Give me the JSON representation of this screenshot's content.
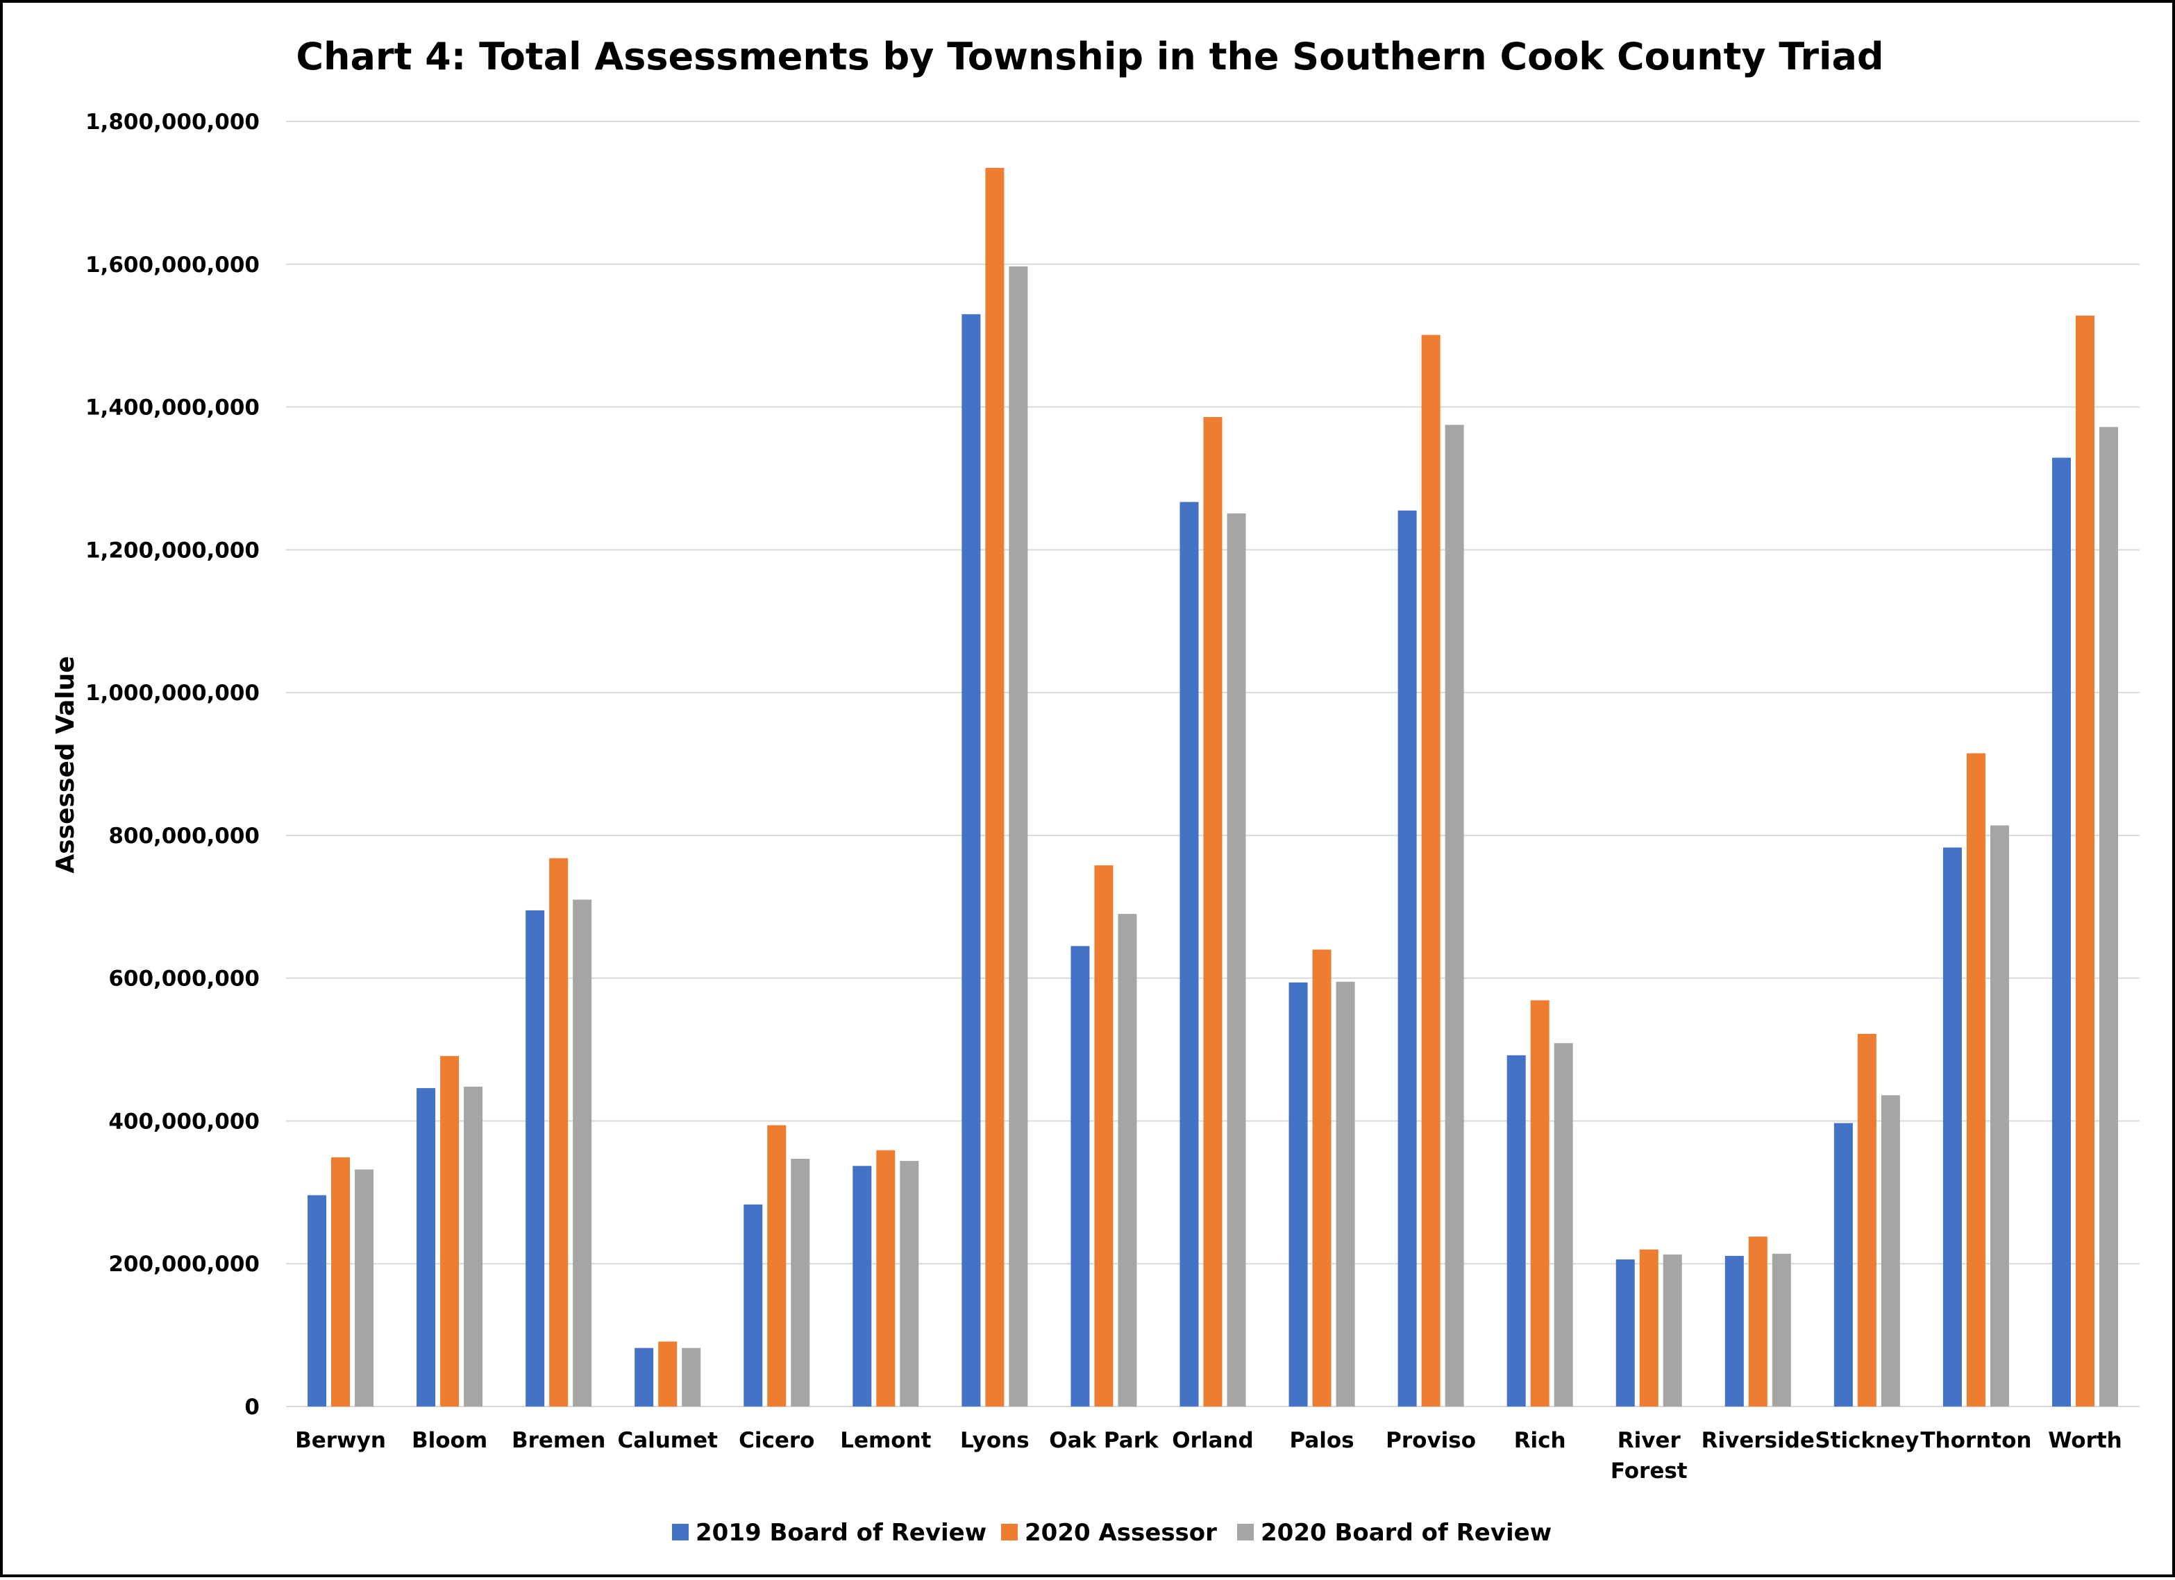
{
  "chart_data": {
    "type": "bar",
    "title": "Chart 4: Total Assessments by Township in the Southern Cook County Triad",
    "xlabel": "",
    "ylabel": "Assessed Value",
    "ylim": [
      0,
      1800000000
    ],
    "yticks": [
      0,
      200000000,
      400000000,
      600000000,
      800000000,
      1000000000,
      1200000000,
      1400000000,
      1600000000,
      1800000000
    ],
    "ytick_labels": [
      "0",
      "200,000,000",
      "400,000,000",
      "600,000,000",
      "800,000,000",
      "1,000,000,000",
      "1,200,000,000",
      "1,400,000,000",
      "1,600,000,000",
      "1,800,000,000"
    ],
    "grid": true,
    "legend_position": "bottom",
    "categories": [
      "Berwyn",
      "Bloom",
      "Bremen",
      "Calumet",
      "Cicero",
      "Lemont",
      "Lyons",
      "Oak Park",
      "Orland",
      "Palos",
      "Proviso",
      "Rich",
      "River Forest",
      "Riverside",
      "Stickney",
      "Thornton",
      "Worth"
    ],
    "series": [
      {
        "name": "2019 Board of Review",
        "color": "#4472c4",
        "values": [
          296000000,
          446000000,
          695000000,
          82000000,
          283000000,
          337000000,
          1530000000,
          645000000,
          1267000000,
          594000000,
          1255000000,
          492000000,
          206000000,
          211000000,
          397000000,
          783000000,
          1329000000
        ]
      },
      {
        "name": "2020 Assessor",
        "color": "#ed7d31",
        "values": [
          349000000,
          491000000,
          768000000,
          91000000,
          394000000,
          359000000,
          1735000000,
          758000000,
          1386000000,
          640000000,
          1501000000,
          569000000,
          220000000,
          238000000,
          522000000,
          915000000,
          1528000000
        ]
      },
      {
        "name": "2020 Board of Review",
        "color": "#a5a5a5",
        "values": [
          332000000,
          448000000,
          710000000,
          82000000,
          347000000,
          344000000,
          1597000000,
          690000000,
          1251000000,
          595000000,
          1375000000,
          509000000,
          213000000,
          214000000,
          436000000,
          814000000,
          1372000000
        ]
      }
    ]
  }
}
